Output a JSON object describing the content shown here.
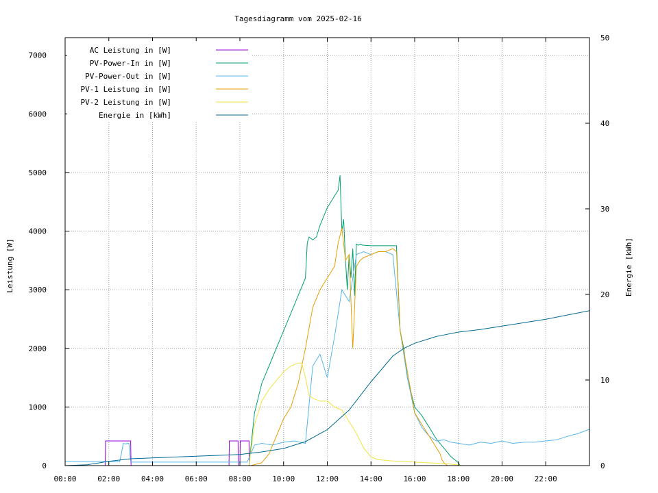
{
  "chart_data": {
    "type": "line",
    "title": "Tagesdiagramm vom 2025-02-16",
    "xlabel": "",
    "ylabel": "Leistung [W]",
    "y2label": "Energie [kWh]",
    "xlim": [
      "00:00",
      "24:00"
    ],
    "ylim": [
      0,
      7300
    ],
    "y2lim": [
      0,
      50
    ],
    "x_ticks": [
      "00:00",
      "02:00",
      "04:00",
      "06:00",
      "08:00",
      "10:00",
      "12:00",
      "14:00",
      "16:00",
      "18:00",
      "20:00",
      "22:00"
    ],
    "y_ticks": [
      "0",
      "1000",
      "2000",
      "3000",
      "4000",
      "5000",
      "6000",
      "7000"
    ],
    "y2_ticks": [
      "0",
      "10",
      "20",
      "30",
      "40",
      "50"
    ],
    "grid": true,
    "legend_position": "top-left",
    "series": [
      {
        "name": "AC Leistung in [W]",
        "axis": "left",
        "color": "#9400d3",
        "x": [
          "01:50",
          "01:51",
          "03:00",
          "03:01",
          "07:30",
          "07:31",
          "07:55",
          "07:56",
          "08:00",
          "08:01",
          "08:25",
          "08:26"
        ],
        "y": [
          0,
          420,
          420,
          0,
          0,
          420,
          420,
          0,
          0,
          420,
          420,
          0
        ]
      },
      {
        "name": "PV-Power-In in [W]",
        "axis": "left",
        "color": "#009e73",
        "x": [
          "08:25",
          "08:40",
          "09:00",
          "09:20",
          "09:40",
          "10:00",
          "10:20",
          "10:40",
          "11:00",
          "11:05",
          "11:10",
          "11:20",
          "11:30",
          "11:40",
          "11:50",
          "12:00",
          "12:10",
          "12:20",
          "12:30",
          "12:35",
          "12:40",
          "12:45",
          "12:50",
          "12:55",
          "13:00",
          "13:05",
          "13:10",
          "13:15",
          "13:20",
          "13:25",
          "13:30",
          "13:40",
          "14:00",
          "14:20",
          "14:40",
          "15:00",
          "15:10",
          "15:20",
          "15:30",
          "15:40",
          "16:00",
          "16:20",
          "16:40",
          "17:00",
          "17:20",
          "17:40",
          "18:00",
          "18:05"
        ],
        "y": [
          0,
          900,
          1400,
          1700,
          2000,
          2300,
          2600,
          2900,
          3200,
          3800,
          3900,
          3850,
          3900,
          4100,
          4250,
          4400,
          4500,
          4600,
          4700,
          4950,
          4000,
          4200,
          3500,
          3000,
          3600,
          3200,
          3700,
          2900,
          3780,
          3760,
          3770,
          3760,
          3750,
          3750,
          3750,
          3750,
          3750,
          2300,
          2000,
          1500,
          1000,
          850,
          650,
          450,
          300,
          150,
          50,
          0
        ]
      },
      {
        "name": "PV-Power-Out in [W]",
        "axis": "left",
        "color": "#56b4e9",
        "x": [
          "00:00",
          "01:00",
          "02:00",
          "02:30",
          "02:40",
          "02:45",
          "02:55",
          "03:00",
          "03:05",
          "04:00",
          "05:00",
          "06:00",
          "07:00",
          "07:30",
          "08:00",
          "08:20",
          "08:40",
          "09:00",
          "09:30",
          "10:00",
          "10:30",
          "11:00",
          "11:20",
          "11:40",
          "12:00",
          "12:20",
          "12:40",
          "13:00",
          "13:20",
          "13:40",
          "14:00",
          "14:20",
          "14:40",
          "15:00",
          "15:20",
          "15:40",
          "16:00",
          "16:20",
          "16:40",
          "17:00",
          "17:20",
          "17:40",
          "18:00",
          "18:30",
          "19:00",
          "19:30",
          "20:00",
          "20:30",
          "21:00",
          "21:30",
          "22:00",
          "22:30",
          "23:00",
          "23:30",
          "24:00"
        ],
        "y": [
          70,
          70,
          70,
          70,
          380,
          370,
          380,
          70,
          60,
          60,
          60,
          60,
          60,
          60,
          60,
          60,
          350,
          380,
          350,
          400,
          420,
          380,
          1700,
          1900,
          1500,
          2200,
          3000,
          2800,
          3600,
          3650,
          3600,
          3650,
          3650,
          3600,
          2300,
          1500,
          900,
          650,
          500,
          420,
          440,
          400,
          380,
          350,
          400,
          380,
          420,
          380,
          400,
          400,
          420,
          440,
          500,
          550,
          620
        ]
      },
      {
        "name": "PV-1 Leistung in [W]",
        "axis": "left",
        "color": "#e69f00",
        "x": [
          "08:30",
          "09:00",
          "09:20",
          "09:40",
          "10:00",
          "10:20",
          "10:40",
          "11:00",
          "11:20",
          "11:40",
          "12:00",
          "12:20",
          "12:30",
          "12:40",
          "12:50",
          "13:00",
          "13:10",
          "13:20",
          "13:30",
          "13:40",
          "14:00",
          "14:20",
          "14:40",
          "15:00",
          "15:10",
          "15:20",
          "15:40",
          "16:00",
          "16:20",
          "16:40",
          "17:00",
          "17:10",
          "17:15",
          "17:20",
          "17:30"
        ],
        "y": [
          0,
          50,
          200,
          500,
          800,
          1000,
          1400,
          2000,
          2700,
          3000,
          3200,
          3400,
          3800,
          4050,
          3500,
          3600,
          2000,
          3400,
          3500,
          3550,
          3600,
          3650,
          3650,
          3700,
          3650,
          2300,
          1600,
          900,
          700,
          500,
          300,
          200,
          100,
          50,
          0
        ]
      },
      {
        "name": "PV-2 Leistung in [W]",
        "axis": "left",
        "color": "#f0e442",
        "x": [
          "08:25",
          "08:40",
          "09:00",
          "09:20",
          "09:40",
          "10:00",
          "10:20",
          "10:40",
          "10:50",
          "11:00",
          "11:10",
          "11:20",
          "11:40",
          "12:00",
          "12:20",
          "12:40",
          "13:00",
          "13:20",
          "13:40",
          "14:00",
          "14:20",
          "14:40",
          "15:00",
          "15:20",
          "15:40",
          "16:00",
          "16:30",
          "17:00",
          "17:30",
          "18:00",
          "18:10"
        ],
        "y": [
          0,
          700,
          1100,
          1300,
          1450,
          1600,
          1700,
          1750,
          1750,
          1500,
          1200,
          1150,
          1100,
          1100,
          1000,
          950,
          750,
          550,
          300,
          150,
          100,
          90,
          80,
          75,
          70,
          60,
          50,
          40,
          30,
          10,
          0
        ]
      },
      {
        "name": "Energie in [kWh]",
        "axis": "right",
        "color": "#006990",
        "x": [
          "00:00",
          "01:00",
          "02:00",
          "03:00",
          "04:00",
          "05:00",
          "06:00",
          "07:00",
          "08:00",
          "09:00",
          "10:00",
          "11:00",
          "12:00",
          "13:00",
          "14:00",
          "15:00",
          "15:30",
          "16:00",
          "17:00",
          "18:00",
          "19:00",
          "20:00",
          "21:00",
          "22:00",
          "23:00",
          "24:00"
        ],
        "y": [
          0,
          0.1,
          0.5,
          0.8,
          0.9,
          1.0,
          1.1,
          1.2,
          1.3,
          1.6,
          2.0,
          2.8,
          4.2,
          6.5,
          9.8,
          12.8,
          13.7,
          14.3,
          15.1,
          15.6,
          15.9,
          16.3,
          16.7,
          17.1,
          17.6,
          18.1
        ]
      }
    ]
  }
}
